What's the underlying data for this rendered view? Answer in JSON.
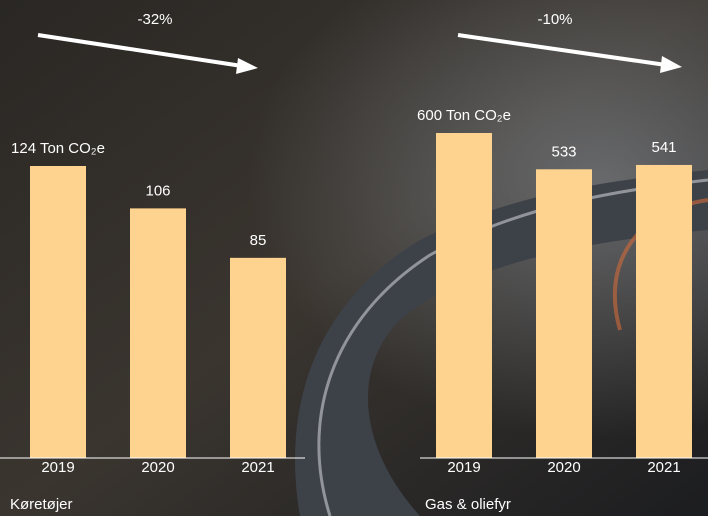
{
  "chart_data": [
    {
      "type": "bar",
      "title": "Køretøjer",
      "annotation": "-32%",
      "categories": [
        "2019",
        "2020",
        "2021"
      ],
      "values": [
        124,
        106,
        85
      ],
      "value_labels": [
        "124 Ton CO₂e",
        "106",
        "85"
      ],
      "color": "#fed38f",
      "ylim": [
        0,
        124
      ]
    },
    {
      "type": "bar",
      "title": "Gas & oliefyr",
      "annotation": "-10%",
      "categories": [
        "2019",
        "2020",
        "2021"
      ],
      "values": [
        600,
        533,
        541
      ],
      "value_labels": [
        "600 Ton CO₂e",
        "533",
        "541"
      ],
      "color": "#fed38f",
      "ylim": [
        0,
        600
      ]
    }
  ]
}
